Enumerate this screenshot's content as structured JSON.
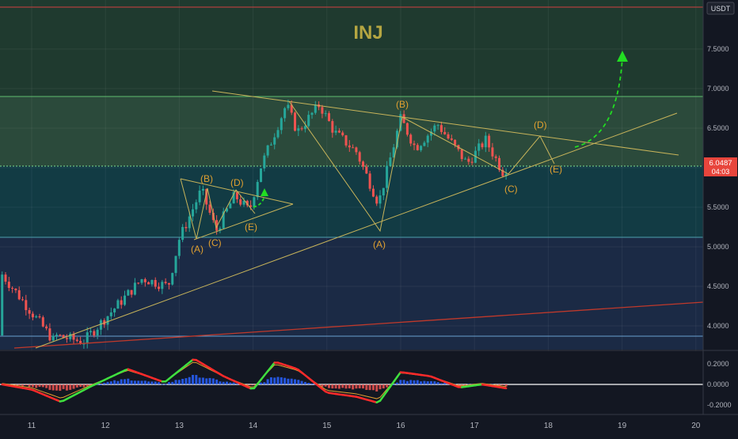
{
  "title": "INJ",
  "quote_currency": "USDT",
  "price_tag": "6.0487",
  "countdown": "04:03",
  "colors": {
    "background": "#131722",
    "title": "#b5a642",
    "trendline": "#c8b45a",
    "wave_label": "#e0a030",
    "forecast_arrow": "#22dd22",
    "support_red": "#c0392b",
    "price_tag_bg": "#e8453c",
    "candle_up": "#26a69a",
    "candle_down": "#ef5350",
    "zone_top": "#1e3a2e",
    "zone_mid": "#2c4a3a",
    "zone_teal": "#123c44",
    "zone_low": "#1a2a44"
  },
  "axis": {
    "y_ticks": [
      "7.5000",
      "7.0000",
      "6.5000",
      "6.0000",
      "5.5000",
      "5.0000",
      "4.5000",
      "4.0000"
    ],
    "x_ticks": [
      "11",
      "12",
      "13",
      "14",
      "15",
      "16",
      "17",
      "18",
      "19",
      "20"
    ],
    "osc_ticks": [
      "0.2000",
      "0.0000",
      "-0.2000"
    ]
  },
  "wave_labels": {
    "small": [
      "(A)",
      "(B)",
      "(C)",
      "(D)",
      "(E)"
    ],
    "large": [
      "(A)",
      "(B)",
      "(C)",
      "(D)",
      "(E)"
    ]
  },
  "chart_data": {
    "type": "candlestick",
    "title": "INJ",
    "quote": "USDT",
    "ylim": [
      3.7,
      8.0
    ],
    "x_range_days": [
      10.6,
      20.0
    ],
    "horizontal_levels": [
      7.95,
      6.9,
      5.99,
      5.13,
      3.87
    ],
    "last_price": 6.0487,
    "pivots": [
      {
        "day": 11.3,
        "price": 3.88
      },
      {
        "day": 11.7,
        "price": 3.8
      },
      {
        "day": 12.5,
        "price": 4.6
      },
      {
        "day": 12.85,
        "price": 4.5
      },
      {
        "day": 13.0,
        "price": 5.1
      },
      {
        "day": 13.3,
        "price": 5.72
      },
      {
        "day": 13.5,
        "price": 5.2
      },
      {
        "day": 13.75,
        "price": 5.65
      },
      {
        "day": 13.95,
        "price": 5.45
      },
      {
        "day": 14.1,
        "price": 6.0
      },
      {
        "day": 14.45,
        "price": 6.8
      },
      {
        "day": 14.6,
        "price": 6.45
      },
      {
        "day": 14.9,
        "price": 6.8
      },
      {
        "day": 15.1,
        "price": 6.45
      },
      {
        "day": 15.4,
        "price": 6.2
      },
      {
        "day": 15.7,
        "price": 5.55
      },
      {
        "day": 16.0,
        "price": 6.62
      },
      {
        "day": 16.2,
        "price": 6.25
      },
      {
        "day": 16.5,
        "price": 6.55
      },
      {
        "day": 16.9,
        "price": 6.05
      },
      {
        "day": 17.15,
        "price": 6.35
      },
      {
        "day": 17.4,
        "price": 5.92
      },
      {
        "day": 17.45,
        "price": 6.05
      }
    ],
    "oscillator": {
      "ylim": [
        -0.3,
        0.3
      ],
      "pivots": [
        {
          "day": 10.6,
          "value": 0.0
        },
        {
          "day": 11.0,
          "value": -0.05
        },
        {
          "day": 11.4,
          "value": -0.17
        },
        {
          "day": 11.8,
          "value": -0.02
        },
        {
          "day": 12.3,
          "value": 0.15
        },
        {
          "day": 12.8,
          "value": 0.02
        },
        {
          "day": 13.2,
          "value": 0.25
        },
        {
          "day": 13.6,
          "value": 0.08
        },
        {
          "day": 14.0,
          "value": -0.05
        },
        {
          "day": 14.3,
          "value": 0.22
        },
        {
          "day": 14.6,
          "value": 0.15
        },
        {
          "day": 15.0,
          "value": -0.08
        },
        {
          "day": 15.4,
          "value": -0.12
        },
        {
          "day": 15.7,
          "value": -0.18
        },
        {
          "day": 16.0,
          "value": 0.12
        },
        {
          "day": 16.4,
          "value": 0.08
        },
        {
          "day": 16.8,
          "value": -0.03
        },
        {
          "day": 17.1,
          "value": 0.0
        },
        {
          "day": 17.45,
          "value": -0.04
        }
      ]
    }
  }
}
